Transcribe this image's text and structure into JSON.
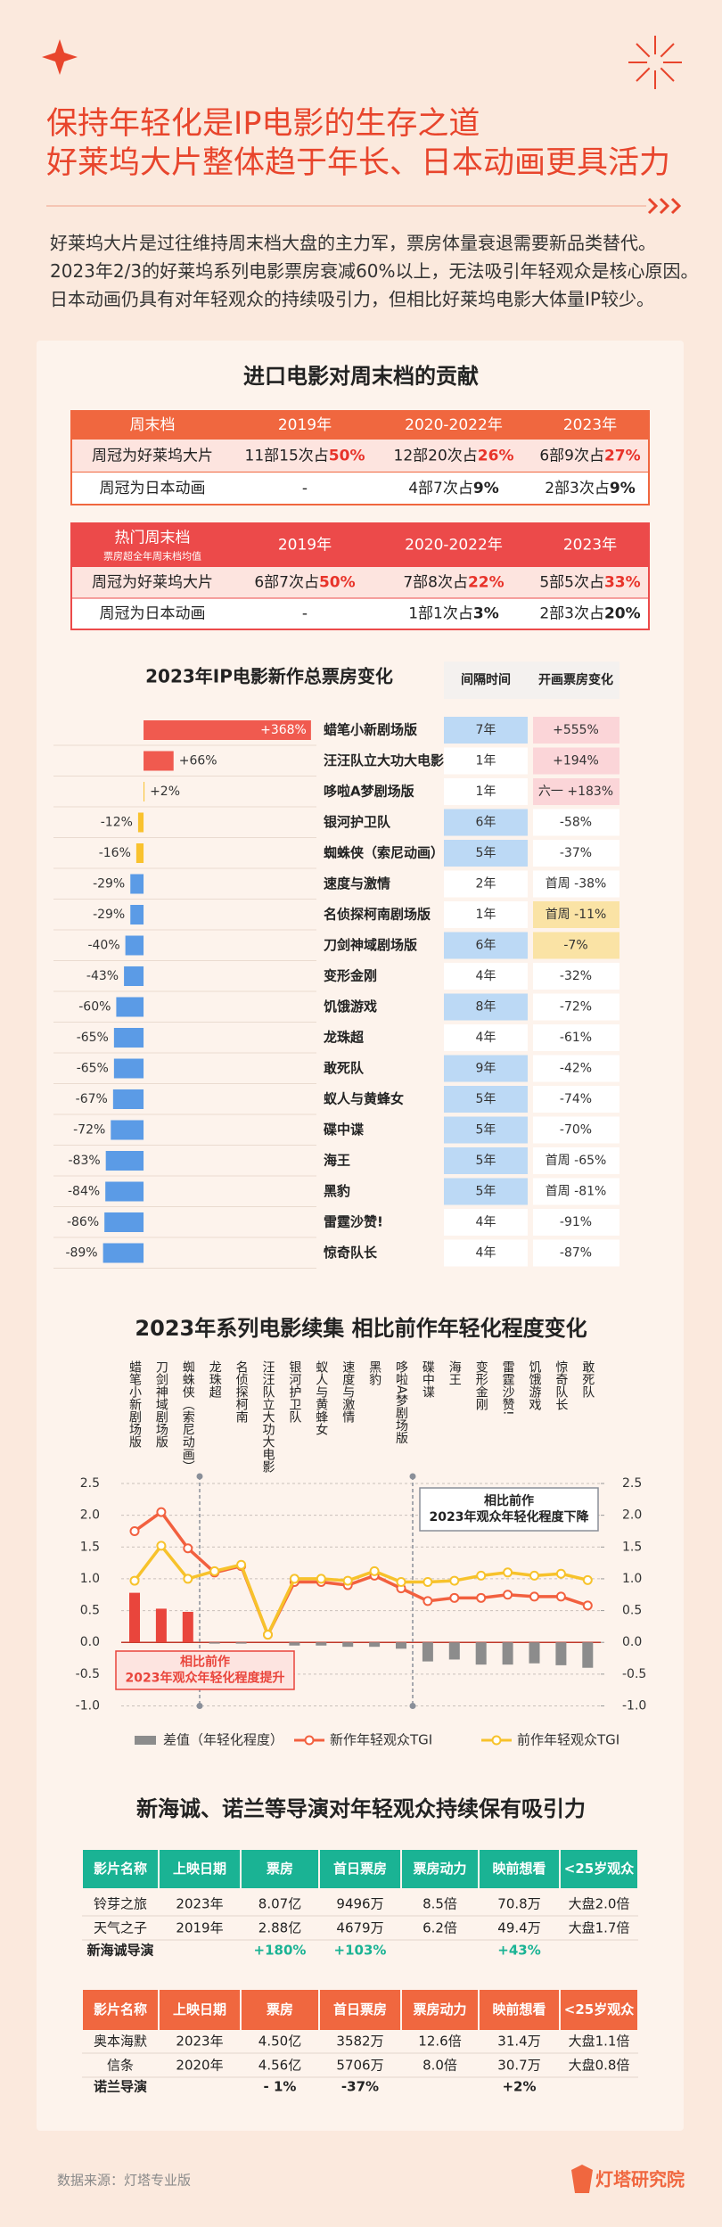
{
  "header": {
    "title_lines": [
      "保持年轻化是IP电影的生存之道",
      "好莱坞大片整体趋于年长、日本动画更具活力"
    ],
    "intro_lines": [
      "好莱坞大片是过往维持周末档大盘的主力军，票房体量衰退需要新品类替代。",
      "2023年2/3的好莱坞系列电影票房衰减60%以上，无法吸引年轻观众是核心原因。",
      "日本动画仍具有对年轻观众的持续吸引力，但相比好莱坞电影大体量IP较少。"
    ]
  },
  "weekend": {
    "title": "进口电影对周末档的贡献",
    "highlight_color": "#e8332a",
    "tables": [
      {
        "header": [
          "周末档",
          "2019年",
          "2020-2022年",
          "2023年"
        ],
        "header_color": "#f0673f",
        "rows": [
          [
            "周冠为好莱坞大片",
            "11部15次占50%",
            "12部20次占26%",
            "6部9次占27%"
          ],
          [
            "周冠为日本动画",
            "-",
            "4部7次占9%",
            "2部3次占9%"
          ]
        ]
      },
      {
        "header": [
          "热门周末档",
          "2019年",
          "2020-2022年",
          "2023年"
        ],
        "header_note": "票房超全年周末档均值",
        "header_color": "#ec4a4a",
        "rows": [
          [
            "周冠为好莱坞大片",
            "6部7次占50%",
            "7部8次占22%",
            "5部5次占33%"
          ],
          [
            "周冠为日本动画",
            "-",
            "1部1次占3%",
            "2部3次占20%"
          ]
        ]
      }
    ]
  },
  "chart_data": [
    {
      "type": "bar",
      "orientation": "horizontal",
      "title": "2023年IP电影新作总票房变化",
      "categories": [
        "蜡笔小新剧场版",
        "汪汪队立大功大电影",
        "哆啦A梦剧场版",
        "银河护卫队",
        "蜘蛛侠（索尼动画）",
        "速度与激情",
        "名侦探柯南剧场版",
        "刀剑神域剧场版",
        "变形金刚",
        "饥饿游戏",
        "龙珠超",
        "敢死队",
        "蚁人与黄蜂女",
        "碟中谍",
        "海王",
        "黑豹",
        "雷霆沙赞!",
        "惊奇队长"
      ],
      "values": [
        368,
        66,
        2,
        -12,
        -16,
        -29,
        -29,
        -40,
        -43,
        -60,
        -65,
        -65,
        -67,
        -72,
        -83,
        -84,
        -86,
        -89
      ],
      "value_labels": [
        "+368%",
        "+66%",
        "+2%",
        "-12%",
        "-16%",
        "-29%",
        "-29%",
        "-40%",
        "-43%",
        "-60%",
        "-65%",
        "-65%",
        "-67%",
        "-72%",
        "-83%",
        "-84%",
        "-86%",
        "-89%"
      ],
      "colors": [
        "#f05a4f",
        "#f05a4f",
        "#f9c22e",
        "#f9c22e",
        "#f9c22e",
        "#5b9be6",
        "#5b9be6",
        "#5b9be6",
        "#5b9be6",
        "#5b9be6",
        "#5b9be6",
        "#5b9be6",
        "#5b9be6",
        "#5b9be6",
        "#5b9be6",
        "#5b9be6",
        "#5b9be6",
        "#5b9be6"
      ],
      "xlim": [
        -100,
        380
      ],
      "table": {
        "headers": [
          "间隔时间",
          "开画票房变化"
        ],
        "interval": [
          "7年",
          "1年",
          "1年",
          "6年",
          "5年",
          "2年",
          "1年",
          "6年",
          "4年",
          "8年",
          "4年",
          "9年",
          "5年",
          "5年",
          "5年",
          "5年",
          "4年",
          "4年"
        ],
        "interval_colors": [
          "#bcd9f5",
          "#ffffff",
          "#ffffff",
          "#bcd9f5",
          "#bcd9f5",
          "#ffffff",
          "#ffffff",
          "#bcd9f5",
          "#ffffff",
          "#bcd9f5",
          "#ffffff",
          "#bcd9f5",
          "#bcd9f5",
          "#bcd9f5",
          "#bcd9f5",
          "#bcd9f5",
          "#ffffff",
          "#ffffff"
        ],
        "change": [
          "+555%",
          "+194%",
          "六一 +183%",
          "-58%",
          "-37%",
          "首周 -38%",
          "首周 -11%",
          "-7%",
          "-32%",
          "-72%",
          "-61%",
          "-42%",
          "-74%",
          "-70%",
          "首周 -65%",
          "首周 -81%",
          "-91%",
          "-87%"
        ],
        "change_colors": [
          "#fbd5d8",
          "#fbd5d8",
          "#fbd5d8",
          "#ffffff",
          "#ffffff",
          "#ffffff",
          "#fae3a5",
          "#fae3a5",
          "#ffffff",
          "#ffffff",
          "#ffffff",
          "#ffffff",
          "#ffffff",
          "#ffffff",
          "#ffffff",
          "#ffffff",
          "#ffffff",
          "#ffffff"
        ]
      }
    },
    {
      "type": "line",
      "title": "2023年系列电影续集 相比前作年轻化程度变化",
      "categories": [
        "蜡笔小新剧场版",
        "刀剑神域剧场版",
        "蜘蛛侠（索尼动画）",
        "龙珠超",
        "名侦探柯南",
        "汪汪队立大功大电影",
        "银河护卫队",
        "蚁人与黄蜂女",
        "速度与激情",
        "黑豹",
        "哆啦A梦剧场版",
        "碟中谍",
        "海王",
        "变形金刚",
        "雷霆沙赞!",
        "饥饿游戏",
        "惊奇队长",
        "敢死队"
      ],
      "series": [
        {
          "name": "差值（年轻化程度）",
          "type": "bar",
          "color": "#8c8c8c",
          "colors": [
            "#e9453c",
            "#e9453c",
            "#e9453c",
            "#8c8c8c",
            "#8c8c8c",
            "#8c8c8c",
            "#8c8c8c",
            "#8c8c8c",
            "#8c8c8c",
            "#8c8c8c",
            "#8c8c8c",
            "#8c8c8c",
            "#8c8c8c",
            "#8c8c8c",
            "#8c8c8c",
            "#8c8c8c",
            "#8c8c8c",
            "#8c8c8c"
          ],
          "values": [
            0.78,
            0.53,
            0.48,
            -0.02,
            -0.02,
            0,
            -0.05,
            -0.05,
            -0.07,
            -0.07,
            -0.1,
            -0.3,
            -0.27,
            -0.35,
            -0.35,
            -0.33,
            -0.36,
            -0.4
          ]
        },
        {
          "name": "新作年轻观众TGI",
          "type": "line",
          "color": "#f2603f",
          "values": [
            1.75,
            2.05,
            1.48,
            1.1,
            1.2,
            0.12,
            0.95,
            0.95,
            0.9,
            1.05,
            0.85,
            0.65,
            0.7,
            0.7,
            0.75,
            0.72,
            0.72,
            0.58
          ]
        },
        {
          "name": "前作年轻观众TGI",
          "type": "line",
          "color": "#f7c22b",
          "values": [
            0.97,
            1.52,
            1.0,
            1.12,
            1.22,
            0.12,
            1.0,
            1.0,
            0.97,
            1.12,
            0.95,
            0.95,
            0.97,
            1.05,
            1.1,
            1.05,
            1.08,
            0.98
          ]
        }
      ],
      "ylim": [
        -1,
        2.5
      ],
      "yticks": [
        2.5,
        {
          "value": 2,
          "label": "2.0"
        },
        1.5,
        {
          "value": 1,
          "label": "1.0"
        },
        0.5,
        {
          "value": 0,
          "label": "0.0"
        },
        -0.5,
        {
          "value": -1,
          "label": "-1.0"
        }
      ],
      "y2lim": [
        -1,
        2.5
      ],
      "y2ticks": [
        2.5,
        {
          "value": 2,
          "label": "2.0"
        },
        1.5,
        {
          "value": 1,
          "label": "1.0"
        },
        0.5,
        {
          "value": 0,
          "label": "0.0"
        },
        -0.5,
        {
          "value": -1,
          "label": "-1.0"
        }
      ],
      "grid": true,
      "annotations": [
        {
          "lines": [
            "相比前作",
            "2023年观众年轻化程度下降"
          ]
        },
        {
          "lines": [
            "相比前作",
            "2023年观众年轻化程度提升"
          ]
        }
      ]
    }
  ],
  "directors": {
    "title": "新海诚、诺兰等导演对年轻观众持续保有吸引力",
    "tables": [
      {
        "header": [
          "影片名称",
          "上映日期",
          "票房",
          "首日票房",
          "票房动力",
          "映前想看",
          "<25岁观众"
        ],
        "header_color": "#1ab394",
        "summary_color": "#1ab394",
        "rows": [
          [
            "铃芽之旅",
            "2023年",
            "8.07亿",
            "9496万",
            "8.5倍",
            "70.8万",
            "大盘2.0倍"
          ],
          [
            "天气之子",
            "2019年",
            "2.88亿",
            "4679万",
            "6.2倍",
            "49.4万",
            "大盘1.7倍"
          ]
        ],
        "summary": [
          "新海诚导演",
          null,
          "+180%",
          "+103%",
          null,
          "+43%",
          null
        ]
      },
      {
        "header": [
          "影片名称",
          "上映日期",
          "票房",
          "首日票房",
          "票房动力",
          "映前想看",
          "<25岁观众"
        ],
        "header_color": "#f0673f",
        "summary_color": "#222222",
        "rows": [
          [
            "奥本海默",
            "2023年",
            "4.50亿",
            "3582万",
            "12.6倍",
            "31.4万",
            "大盘1.1倍"
          ],
          [
            "信条",
            "2020年",
            "4.56亿",
            "5706万",
            "8.0倍",
            "30.7万",
            "大盘0.8倍"
          ]
        ],
        "summary": [
          "诺兰导演",
          null,
          "- 1%",
          "-37%",
          null,
          "+2%",
          null
        ]
      }
    ]
  },
  "footer": {
    "source": "数据来源：灯塔专业版",
    "logo": "灯塔研究院"
  }
}
